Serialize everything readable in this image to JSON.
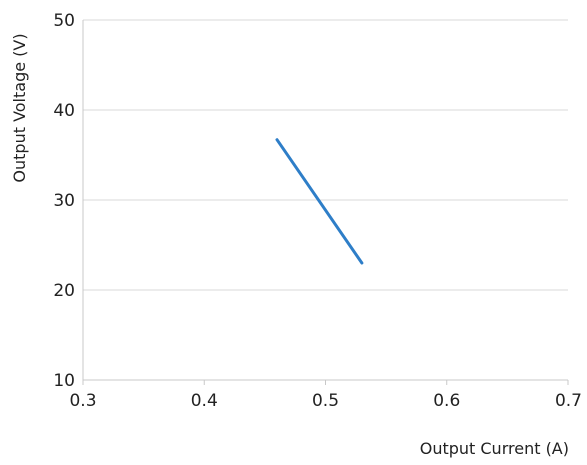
{
  "chart_data": {
    "type": "line",
    "title": "",
    "xlabel": "Output Current (A)",
    "ylabel": "Output Voltage (V)",
    "xlim": [
      0.3,
      0.7
    ],
    "ylim": [
      10,
      50
    ],
    "x_ticks": [
      "0.3",
      "0.4",
      "0.5",
      "0.6",
      "0.7"
    ],
    "y_ticks": [
      "10",
      "20",
      "30",
      "40",
      "50"
    ],
    "grid": "horizontal",
    "legend": "none",
    "series": [
      {
        "color": "#2e7ec8",
        "x": [
          0.46,
          0.53
        ],
        "y": [
          36.7,
          23.0
        ]
      }
    ]
  },
  "colors": {
    "gridline": "#d9d9d9",
    "axis": "#c8c8c8",
    "text": "#222222"
  }
}
